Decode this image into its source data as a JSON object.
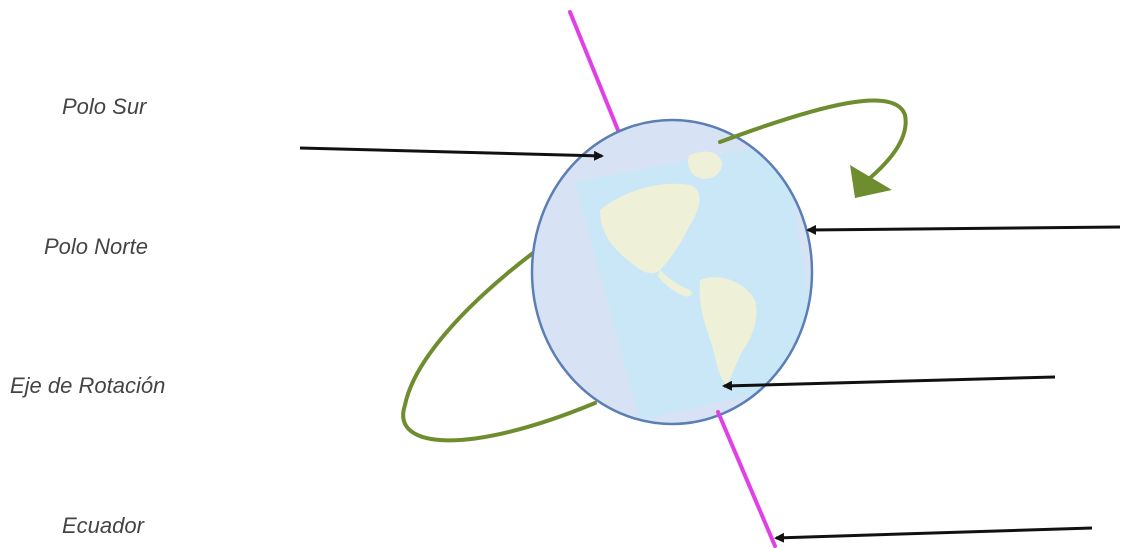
{
  "labels": [
    {
      "text": "Polo Sur"
    },
    {
      "text": "Polo Norte"
    },
    {
      "text": "Eje de Rotación"
    },
    {
      "text": "Ecuador"
    }
  ],
  "colors": {
    "axis": "#e040e6",
    "orbit": "#6d8d2f",
    "globe_outline": "#5b7fb5",
    "globe_fill": "#d7e3f4",
    "ocean": "#c9e7f7",
    "land": "#eef1d8",
    "arrow": "#111111",
    "label": "#444444"
  },
  "icons": {
    "globe": "earth-globe-icon",
    "rotation": "rotation-arrow-icon"
  }
}
